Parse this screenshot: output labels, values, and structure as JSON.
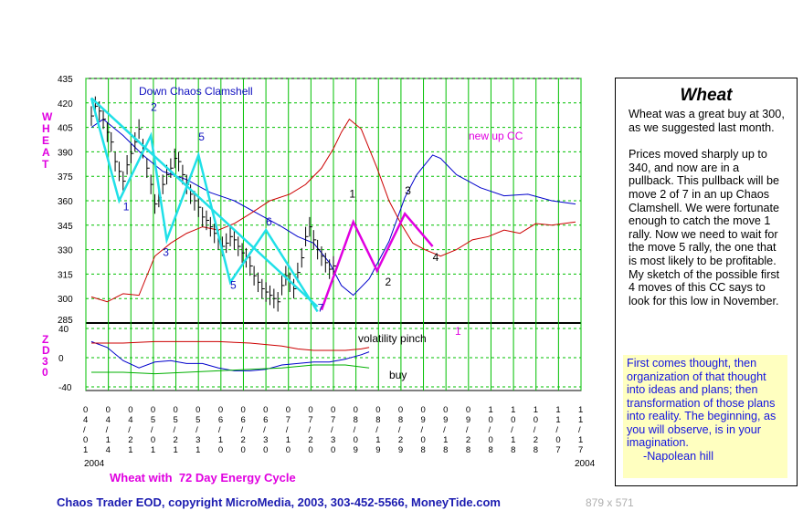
{
  "chart_data": {
    "type": "line",
    "title": "Wheat with  72 Day Energy Cycle",
    "ylabel": "WHEAT",
    "ylim": [
      285,
      435
    ],
    "yticks": [
      300,
      315,
      330,
      345,
      360,
      375,
      390,
      405,
      420,
      435
    ],
    "y_axis_bottom_label": "285",
    "lower_panel": {
      "label": "ZD30",
      "ylim": [
        -40,
        40
      ],
      "yticks": [
        40,
        0,
        -40
      ]
    },
    "x_dates": [
      "04/01",
      "04/14",
      "04/21",
      "05/01",
      "05/21",
      "05/31",
      "06/10",
      "06/20",
      "06/30",
      "07/10",
      "07/20",
      "07/30",
      "08/09",
      "08/19",
      "08/29",
      "09/08",
      "09/18",
      "09/28",
      "10/08",
      "10/18",
      "10/28",
      "11/07",
      "11/17"
    ],
    "x_year_left": "2004",
    "x_year_right": "2004",
    "price_series": {
      "name": "Wheat daily bars (approx close)",
      "closes": [
        412,
        418,
        415,
        410,
        402,
        396,
        384,
        378,
        372,
        382,
        389,
        396,
        404,
        392,
        380,
        370,
        358,
        362,
        370,
        376,
        380,
        386,
        384,
        376,
        370,
        364,
        360,
        356,
        350,
        348,
        344,
        340,
        336,
        332,
        334,
        338,
        336,
        332,
        328,
        325,
        320,
        314,
        310,
        306,
        304,
        302,
        300,
        298,
        308,
        314,
        310,
        306,
        316,
        325,
        338,
        344,
        336,
        330,
        326,
        322,
        318,
        320
      ]
    },
    "series": [
      {
        "name": "Energy cycle (blue)",
        "color": "#0000cc",
        "points": [
          [
            0,
            405
          ],
          [
            3,
            410
          ],
          [
            8,
            400
          ],
          [
            13,
            388
          ],
          [
            18,
            378
          ],
          [
            24,
            373
          ],
          [
            30,
            365
          ],
          [
            36,
            360
          ],
          [
            42,
            352
          ],
          [
            48,
            344
          ],
          [
            52,
            338
          ],
          [
            56,
            334
          ],
          [
            60,
            322
          ],
          [
            63,
            308
          ],
          [
            66,
            302
          ],
          [
            70,
            312
          ],
          [
            75,
            335
          ],
          [
            79,
            362
          ],
          [
            82,
            376
          ],
          [
            86,
            388
          ],
          [
            88,
            386
          ],
          [
            92,
            376
          ],
          [
            98,
            368
          ],
          [
            104,
            363
          ],
          [
            110,
            364
          ],
          [
            116,
            360
          ],
          [
            122,
            358
          ]
        ]
      },
      {
        "name": "Energy cycle (red)",
        "color": "#cc0000",
        "points": [
          [
            0,
            301
          ],
          [
            4,
            298
          ],
          [
            8,
            303
          ],
          [
            12,
            302
          ],
          [
            16,
            326
          ],
          [
            20,
            334
          ],
          [
            24,
            340
          ],
          [
            28,
            344
          ],
          [
            32,
            342
          ],
          [
            36,
            346
          ],
          [
            40,
            352
          ],
          [
            45,
            360
          ],
          [
            50,
            364
          ],
          [
            54,
            370
          ],
          [
            58,
            380
          ],
          [
            61,
            392
          ],
          [
            63,
            402
          ],
          [
            65,
            410
          ],
          [
            68,
            404
          ],
          [
            72,
            380
          ],
          [
            75,
            360
          ],
          [
            78,
            346
          ],
          [
            81,
            334
          ],
          [
            84,
            330
          ],
          [
            88,
            326
          ],
          [
            92,
            330
          ],
          [
            96,
            336
          ],
          [
            100,
            338
          ],
          [
            104,
            342
          ],
          [
            108,
            340
          ],
          [
            112,
            346
          ],
          [
            116,
            345
          ],
          [
            122,
            347
          ]
        ]
      }
    ],
    "annotations": [
      {
        "text": "Down Chaos Clamshell",
        "color": "#1010c0"
      },
      {
        "text": "new up CC",
        "color": "#e000e0"
      },
      {
        "text": "volatility pinch",
        "color": "#000000"
      },
      {
        "text": "buy",
        "color": "#000000"
      }
    ],
    "wave_labels": [
      {
        "text": "1",
        "x": 8,
        "y": 354,
        "color": "#1010c0"
      },
      {
        "text": "2",
        "x": 15,
        "y": 415,
        "color": "#1010c0"
      },
      {
        "text": "3",
        "x": 18,
        "y": 326,
        "color": "#1010c0"
      },
      {
        "text": "5",
        "x": 27,
        "y": 397,
        "color": "#1010c0"
      },
      {
        "text": "6",
        "x": 44,
        "y": 345,
        "color": "#1010c0"
      },
      {
        "text": "5",
        "x": 35,
        "y": 306,
        "color": "#1010c0"
      },
      {
        "text": "7",
        "x": 57,
        "y": 292,
        "color": "#1010c0"
      },
      {
        "text": "1",
        "x": 65,
        "y": 362,
        "color": "#000000"
      },
      {
        "text": "2",
        "x": 74,
        "y": 308,
        "color": "#000000"
      },
      {
        "text": "3",
        "x": 79,
        "y": 364,
        "color": "#000000"
      },
      {
        "text": "4",
        "x": 86,
        "y": 323,
        "color": "#000000"
      }
    ],
    "lower_marker": {
      "text": "1",
      "color": "#e000e0"
    },
    "down_clamshell_path": [
      [
        0,
        423
      ],
      [
        7,
        360
      ],
      [
        15,
        400
      ],
      [
        19,
        336
      ],
      [
        27,
        388
      ],
      [
        35,
        310
      ],
      [
        44,
        342
      ],
      [
        57,
        292
      ]
    ],
    "down_trendline": [
      [
        0,
        423
      ],
      [
        57,
        295
      ]
    ],
    "new_cc_path": [
      [
        58,
        293
      ],
      [
        66,
        347
      ],
      [
        72,
        317
      ],
      [
        79,
        352
      ],
      [
        86,
        332
      ]
    ],
    "lower_lines": {
      "blue": [
        [
          0,
          22
        ],
        [
          4,
          14
        ],
        [
          8,
          -4
        ],
        [
          12,
          -14
        ],
        [
          16,
          -6
        ],
        [
          20,
          -4
        ],
        [
          24,
          -8
        ],
        [
          28,
          -8
        ],
        [
          32,
          -14
        ],
        [
          36,
          -18
        ],
        [
          40,
          -18
        ],
        [
          44,
          -16
        ],
        [
          48,
          -10
        ],
        [
          52,
          -8
        ],
        [
          56,
          -6
        ],
        [
          60,
          -6
        ],
        [
          64,
          -2
        ],
        [
          68,
          4
        ],
        [
          70,
          8
        ]
      ],
      "red": [
        [
          0,
          20
        ],
        [
          8,
          20
        ],
        [
          16,
          22
        ],
        [
          24,
          22
        ],
        [
          32,
          22
        ],
        [
          40,
          20
        ],
        [
          48,
          16
        ],
        [
          52,
          12
        ],
        [
          56,
          10
        ],
        [
          60,
          10
        ],
        [
          64,
          10
        ],
        [
          68,
          12
        ],
        [
          70,
          14
        ]
      ],
      "green": [
        [
          0,
          -20
        ],
        [
          8,
          -20
        ],
        [
          16,
          -22
        ],
        [
          24,
          -20
        ],
        [
          32,
          -18
        ],
        [
          40,
          -16
        ],
        [
          48,
          -14
        ],
        [
          56,
          -10
        ],
        [
          64,
          -10
        ],
        [
          70,
          -14
        ]
      ]
    }
  },
  "panel": {
    "title": "Wheat",
    "para1": "Wheat was a great buy at 300, as we suggested last month.",
    "para2": "Prices moved sharply up to 340, and now are in a pullback. This pullback will be move 2 of 7 in an up Chaos Clamshell. We were fortunate enough to catch the move 1 rally. Now we need to wait for the move 5 rally, the one that is most likely to be profitable. My sketch of the possible first 4 moves of this CC says to look for this low in November.",
    "quote": "First comes thought, then organization of that thought into ideas and plans; then transformation of those plans into reality. The beginning, as you will observe, is in your imagination.",
    "quote_author": "-Napolean hill"
  },
  "footer": {
    "copyright": "Chaos Trader EOD, copyright MicroMedia, 2003, 303-452-5566, MoneyTide.com",
    "dimensions": "879 x 571"
  }
}
